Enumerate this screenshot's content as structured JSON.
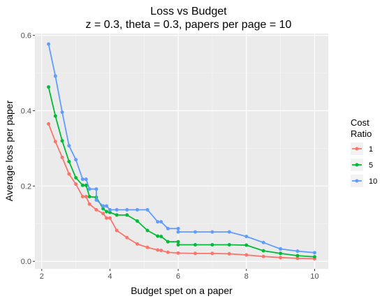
{
  "chart_data": {
    "type": "line",
    "title": "Loss vs Budget",
    "subtitle": "z = 0.3, theta = 0.3, papers per page = 10",
    "xlabel": "Budget spet on a paper",
    "ylabel": "Average loss per paper",
    "xlim": [
      1.8,
      10.4
    ],
    "ylim": [
      -0.02,
      0.605
    ],
    "x_ticks": [
      2,
      4,
      6,
      8,
      10
    ],
    "y_ticks": [
      0.0,
      0.2,
      0.4,
      0.6
    ],
    "y_tick_labels": [
      "0.0",
      "0.2",
      "0.4",
      "0.6"
    ],
    "grid": true,
    "legend_title_lines": [
      "Cost",
      "Ratio"
    ],
    "legend_position": "right",
    "series": [
      {
        "name": "1",
        "color": "#f8766d",
        "points": [
          [
            2.2,
            0.365
          ],
          [
            2.4,
            0.318
          ],
          [
            2.6,
            0.276
          ],
          [
            2.8,
            0.232
          ],
          [
            3.0,
            0.205
          ],
          [
            3.2,
            0.172
          ],
          [
            3.3,
            0.172
          ],
          [
            3.4,
            0.152
          ],
          [
            3.6,
            0.137
          ],
          [
            3.8,
            0.127
          ],
          [
            3.9,
            0.115
          ],
          [
            4.0,
            0.115
          ],
          [
            4.2,
            0.082
          ],
          [
            4.5,
            0.063
          ],
          [
            4.8,
            0.046
          ],
          [
            5.1,
            0.037
          ],
          [
            5.4,
            0.03
          ],
          [
            5.5,
            0.029
          ],
          [
            5.7,
            0.024
          ],
          [
            6.0,
            0.022
          ],
          [
            6.5,
            0.021
          ],
          [
            7.0,
            0.021
          ],
          [
            7.5,
            0.02
          ],
          [
            8.0,
            0.017
          ],
          [
            8.5,
            0.013
          ],
          [
            9.0,
            0.01
          ],
          [
            9.5,
            0.008
          ],
          [
            10.0,
            0.007
          ]
        ]
      },
      {
        "name": "5",
        "color": "#00ba38",
        "points": [
          [
            2.2,
            0.463
          ],
          [
            2.4,
            0.386
          ],
          [
            2.6,
            0.32
          ],
          [
            2.8,
            0.265
          ],
          [
            3.0,
            0.222
          ],
          [
            3.2,
            0.202
          ],
          [
            3.3,
            0.202
          ],
          [
            3.4,
            0.172
          ],
          [
            3.6,
            0.17
          ],
          [
            3.8,
            0.14
          ],
          [
            3.9,
            0.132
          ],
          [
            4.0,
            0.13
          ],
          [
            4.2,
            0.123
          ],
          [
            4.5,
            0.123
          ],
          [
            4.8,
            0.107
          ],
          [
            5.1,
            0.082
          ],
          [
            5.4,
            0.067
          ],
          [
            5.5,
            0.066
          ],
          [
            5.7,
            0.052
          ],
          [
            6.0,
            0.052
          ],
          [
            6.0,
            0.044
          ],
          [
            6.5,
            0.044
          ],
          [
            7.0,
            0.044
          ],
          [
            7.5,
            0.044
          ],
          [
            8.0,
            0.043
          ],
          [
            8.5,
            0.028
          ],
          [
            9.0,
            0.021
          ],
          [
            9.5,
            0.015
          ],
          [
            10.0,
            0.012
          ]
        ]
      },
      {
        "name": "10",
        "color": "#619cff",
        "points": [
          [
            2.2,
            0.577
          ],
          [
            2.4,
            0.492
          ],
          [
            2.6,
            0.396
          ],
          [
            2.8,
            0.307
          ],
          [
            3.0,
            0.27
          ],
          [
            3.2,
            0.218
          ],
          [
            3.3,
            0.218
          ],
          [
            3.4,
            0.192
          ],
          [
            3.6,
            0.192
          ],
          [
            3.6,
            0.163
          ],
          [
            3.8,
            0.147
          ],
          [
            3.9,
            0.147
          ],
          [
            4.0,
            0.137
          ],
          [
            4.2,
            0.137
          ],
          [
            4.5,
            0.137
          ],
          [
            4.8,
            0.137
          ],
          [
            5.1,
            0.137
          ],
          [
            5.4,
            0.105
          ],
          [
            5.5,
            0.105
          ],
          [
            5.7,
            0.087
          ],
          [
            6.0,
            0.087
          ],
          [
            6.0,
            0.078
          ],
          [
            6.5,
            0.078
          ],
          [
            7.0,
            0.078
          ],
          [
            7.5,
            0.078
          ],
          [
            8.0,
            0.066
          ],
          [
            8.5,
            0.05
          ],
          [
            9.0,
            0.033
          ],
          [
            9.5,
            0.027
          ],
          [
            10.0,
            0.023
          ]
        ]
      }
    ]
  }
}
